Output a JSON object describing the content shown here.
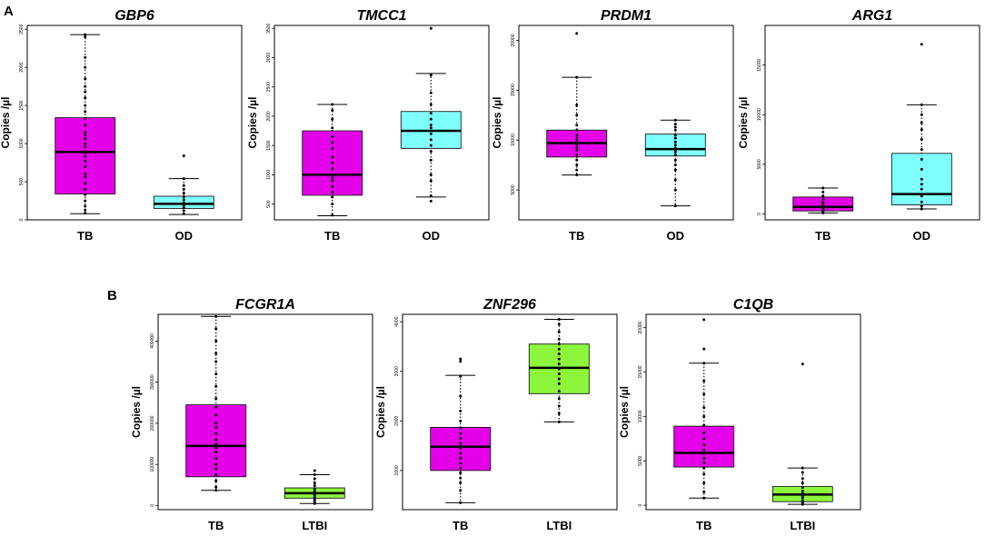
{
  "panel_labels": [
    "A",
    "B"
  ],
  "colors": {
    "tb": "#e400e8",
    "od": "#80ffff",
    "ltbi": "#8cf53c",
    "median": "#000000",
    "frame": "#000000"
  },
  "chart_data": [
    {
      "type": "box",
      "panel": "A",
      "title": "GBP6",
      "ylabel": "Copies /µl",
      "yticks": [
        "0",
        "500",
        "1000",
        "1500",
        "2000",
        "2500"
      ],
      "ylim": [
        0,
        2550
      ],
      "groups": [
        {
          "name": "TB",
          "color": "#e400e8",
          "whisker_low": 80,
          "q1": 340,
          "median": 890,
          "q3": 1340,
          "whisker_high": 2430,
          "points": [
            90,
            130,
            180,
            250,
            330,
            400,
            480,
            560,
            600,
            700,
            770,
            830,
            880,
            900,
            960,
            1000,
            1060,
            1110,
            1150,
            1240,
            1330,
            1420,
            1500,
            1600,
            1680,
            1750,
            1850,
            2000,
            2130,
            2400,
            2430
          ]
        },
        {
          "name": "OD",
          "color": "#80ffff",
          "whisker_low": 70,
          "q1": 150,
          "median": 210,
          "q3": 310,
          "whisker_high": 540,
          "points": [
            80,
            120,
            160,
            180,
            200,
            220,
            260,
            300,
            350,
            400,
            450,
            540,
            840
          ]
        }
      ]
    },
    {
      "type": "box",
      "panel": "A",
      "title": "TMCC1",
      "ylabel": "Copies /µl",
      "yticks": [
        "500",
        "1000",
        "1500",
        "2000",
        "2500",
        "3000",
        "3500"
      ],
      "ylim": [
        230,
        3550
      ],
      "groups": [
        {
          "name": "TB",
          "color": "#e400e8",
          "whisker_low": 300,
          "q1": 650,
          "median": 1000,
          "q3": 1750,
          "whisker_high": 2200,
          "points": [
            310,
            500,
            620,
            700,
            800,
            900,
            950,
            1000,
            1100,
            1200,
            1300,
            1450,
            1550,
            1650,
            1800,
            1950,
            2100,
            2200
          ]
        },
        {
          "name": "OD",
          "color": "#80ffff",
          "whisker_low": 620,
          "q1": 1450,
          "median": 1750,
          "q3": 2080,
          "whisker_high": 2730,
          "points": [
            550,
            640,
            900,
            1000,
            1250,
            1400,
            1500,
            1600,
            1700,
            1800,
            1850,
            1950,
            2050,
            2200,
            2400,
            2700,
            3500
          ]
        }
      ]
    },
    {
      "type": "box",
      "panel": "A",
      "title": "PRDM1",
      "ylabel": "Copies /µl",
      "yticks": [
        "5000",
        "10000",
        "15000",
        "20000"
      ],
      "ylim": [
        2000,
        21500
      ],
      "groups": [
        {
          "name": "TB",
          "color": "#e400e8",
          "whisker_low": 6500,
          "q1": 8300,
          "median": 9700,
          "q3": 11000,
          "whisker_high": 16300,
          "points": [
            6500,
            7000,
            7500,
            8000,
            8500,
            9000,
            9200,
            9500,
            9700,
            9900,
            10200,
            10500,
            11000,
            11500,
            12500,
            13500,
            16300,
            20700
          ]
        },
        {
          "name": "OD",
          "color": "#80ffff",
          "whisker_low": 3400,
          "q1": 8400,
          "median": 9100,
          "q3": 10600,
          "whisker_high": 12000,
          "points": [
            3400,
            5000,
            6000,
            7000,
            7500,
            8000,
            8500,
            8800,
            9000,
            9200,
            9500,
            9800,
            10200,
            10500,
            11000,
            11300,
            11600,
            12000
          ]
        }
      ]
    },
    {
      "type": "box",
      "panel": "A",
      "title": "ARG1",
      "ylabel": "Copies /µl",
      "yticks": [
        "0",
        "5000",
        "10000",
        "15000"
      ],
      "ylim": [
        -600,
        19000
      ],
      "groups": [
        {
          "name": "TB",
          "color": "#e400e8",
          "whisker_low": 100,
          "q1": 300,
          "median": 700,
          "q3": 1700,
          "whisker_high": 2600,
          "points": [
            100,
            200,
            300,
            400,
            500,
            600,
            700,
            800,
            1000,
            1200,
            1500,
            1800,
            2200,
            2600
          ]
        },
        {
          "name": "OD",
          "color": "#80ffff",
          "whisker_low": 500,
          "q1": 900,
          "median": 2000,
          "q3": 6100,
          "whisker_high": 11000,
          "points": [
            500,
            800,
            1200,
            1800,
            2500,
            3000,
            3500,
            4500,
            5500,
            6500,
            7500,
            8500,
            9200,
            10000,
            11000,
            17100
          ]
        }
      ]
    },
    {
      "type": "box",
      "panel": "B",
      "title": "FCGR1A",
      "ylabel": "Copies /µl",
      "yticks": [
        "0",
        "100000",
        "200000",
        "300000",
        "400000"
      ],
      "ylim": [
        -10000,
        465000
      ],
      "groups": [
        {
          "name": "TB",
          "color": "#e400e8",
          "whisker_low": 37000,
          "q1": 70000,
          "median": 145000,
          "q3": 245000,
          "whisker_high": 460000,
          "points": [
            37000,
            45000,
            60000,
            75000,
            90000,
            100000,
            115000,
            130000,
            140000,
            150000,
            160000,
            175000,
            190000,
            200000,
            220000,
            240000,
            260000,
            290000,
            320000,
            350000,
            370000,
            400000,
            430000,
            460000
          ]
        },
        {
          "name": "LTBI",
          "color": "#8cf53c",
          "whisker_low": 5000,
          "q1": 18000,
          "median": 30000,
          "q3": 43000,
          "whisker_high": 75000,
          "points": [
            5000,
            10000,
            15000,
            20000,
            25000,
            30000,
            35000,
            40000,
            48000,
            55000,
            65000,
            75000,
            85000
          ]
        }
      ]
    },
    {
      "type": "box",
      "panel": "B",
      "title": "ZNF296",
      "ylabel": "Copies /µl",
      "yticks": [
        "1000",
        "2000",
        "3000",
        "4000"
      ],
      "ylim": [
        210,
        4150
      ],
      "groups": [
        {
          "name": "TB",
          "color": "#e400e8",
          "whisker_low": 350,
          "q1": 1000,
          "median": 1480,
          "q3": 1870,
          "whisker_high": 2920,
          "points": [
            350,
            600,
            750,
            850,
            950,
            1050,
            1150,
            1250,
            1350,
            1450,
            1500,
            1550,
            1650,
            1750,
            1850,
            2000,
            2200,
            2500,
            2900,
            3200,
            3250
          ]
        },
        {
          "name": "LTBI",
          "color": "#8cf53c",
          "whisker_low": 1980,
          "q1": 2550,
          "median": 3070,
          "q3": 3550,
          "whisker_high": 4050,
          "points": [
            1980,
            2150,
            2300,
            2450,
            2600,
            2750,
            2850,
            2950,
            3050,
            3150,
            3250,
            3350,
            3450,
            3550,
            3650,
            3800,
            3950,
            4050
          ]
        }
      ]
    },
    {
      "type": "box",
      "panel": "B",
      "title": "C1QB",
      "ylabel": "Copies /µl",
      "yticks": [
        "0",
        "5000",
        "10000",
        "15000",
        "20000"
      ],
      "ylim": [
        -500,
        21500
      ],
      "groups": [
        {
          "name": "TB",
          "color": "#e400e8",
          "whisker_low": 800,
          "q1": 4300,
          "median": 5900,
          "q3": 8900,
          "whisker_high": 16000,
          "points": [
            800,
            1500,
            2500,
            3500,
            4200,
            4800,
            5300,
            5800,
            6200,
            6800,
            7500,
            8200,
            9000,
            10000,
            11000,
            12500,
            14000,
            16000,
            17600,
            20900
          ]
        },
        {
          "name": "LTBI",
          "color": "#8cf53c",
          "whisker_low": 100,
          "q1": 400,
          "median": 1200,
          "q3": 2100,
          "whisker_high": 4200,
          "points": [
            100,
            300,
            500,
            800,
            1000,
            1300,
            1600,
            2000,
            2500,
            3000,
            3700,
            4200,
            15900
          ]
        }
      ]
    }
  ]
}
